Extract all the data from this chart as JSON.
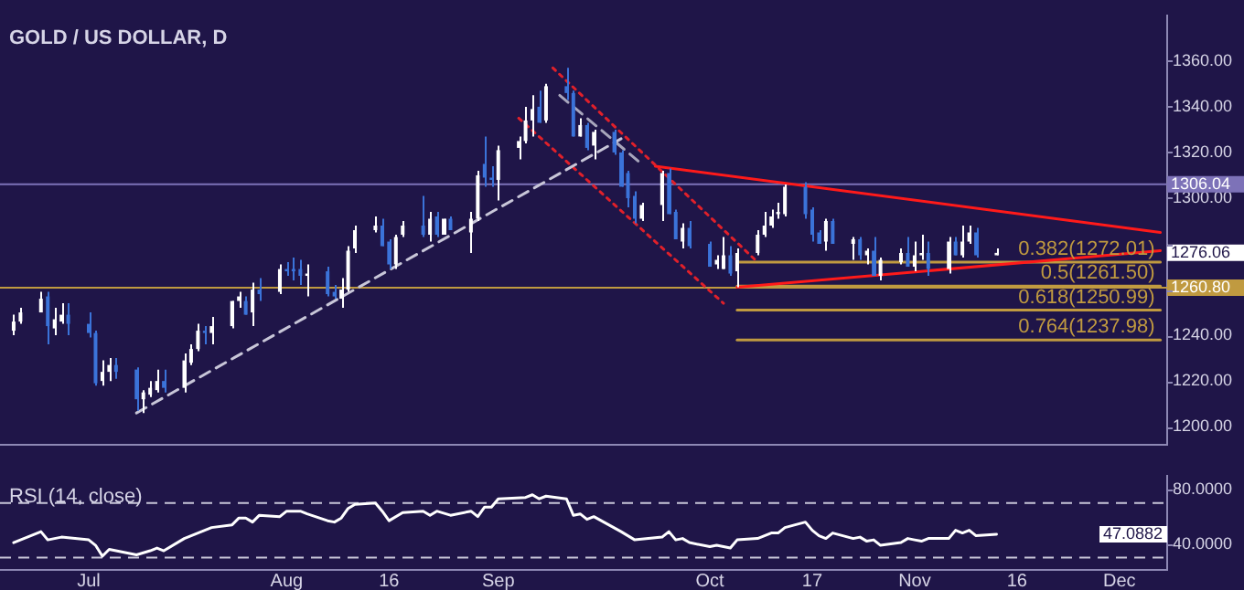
{
  "chart_data": [
    {
      "type": "candlestick",
      "title": "GOLD / US DOLLAR, D",
      "tick_labels": "y",
      "x": [
        "--06-22",
        "--06-23",
        "--06-26",
        "--06-27",
        "--06-28",
        "--06-29",
        "--06-30",
        "--07-03",
        "--07-04",
        "--07-05",
        "--07-06",
        "--07-07",
        "--07-10",
        "--07-11",
        "--07-12",
        "--07-13",
        "--07-14",
        "--07-17",
        "--07-18",
        "--07-19",
        "--07-20",
        "--07-21",
        "--07-24",
        "--07-25",
        "--07-26",
        "--07-27",
        "--07-28",
        "--07-31",
        "--08-01",
        "--08-02",
        "--08-03",
        "--08-04",
        "--08-07",
        "--08-08",
        "--08-09",
        "--08-10",
        "--08-11",
        "--08-14",
        "--08-15",
        "--08-16",
        "--08-17",
        "--08-18",
        "--08-21",
        "--08-22",
        "--08-23",
        "--08-24",
        "--08-25",
        "--08-28",
        "--08-29",
        "--08-30",
        "--08-31",
        "--09-01",
        "--09-04",
        "--09-05",
        "--09-06",
        "--09-07",
        "--09-08",
        "--09-11",
        "--09-12",
        "--09-13",
        "--09-14",
        "--09-15",
        "--09-18",
        "--09-19",
        "--09-20",
        "--09-21",
        "--09-22",
        "--09-25",
        "--09-26",
        "--09-27",
        "--09-28",
        "--09-29",
        "--10-02",
        "--10-03",
        "--10-04",
        "--10-05",
        "--10-06",
        "--10-09",
        "--10-10",
        "--10-11",
        "--10-12",
        "--10-13",
        "--10-16",
        "--10-17",
        "--10-18",
        "--10-19",
        "--10-20",
        "--10-23",
        "--10-24",
        "--10-25",
        "--10-26",
        "--10-27",
        "--10-30",
        "--10-31",
        "--11-01",
        "--11-02",
        "--11-03",
        "--11-06",
        "--11-07",
        "--11-08",
        "--11-09",
        "--11-10",
        "--11-13"
      ],
      "ohlc": [
        [
          1242,
          1249,
          1240,
          1246
        ],
        [
          1246,
          1252,
          1245,
          1250
        ],
        [
          1250,
          1259,
          1250,
          1256
        ],
        [
          1257,
          1259,
          1236,
          1244
        ],
        [
          1243,
          1252,
          1240,
          1247
        ],
        [
          1246,
          1254,
          1245,
          1249
        ],
        [
          1249,
          1254,
          1240,
          1245
        ],
        [
          1245,
          1250,
          1239,
          1241
        ],
        [
          1241,
          1242,
          1218,
          1219
        ],
        [
          1220,
          1229,
          1218,
          1224
        ],
        [
          1224,
          1230,
          1220,
          1227
        ],
        [
          1227,
          1230,
          1221,
          1224
        ],
        [
          1225,
          1226,
          1207,
          1212
        ],
        [
          1212,
          1216,
          1206,
          1215
        ],
        [
          1214,
          1220,
          1213,
          1217
        ],
        [
          1216,
          1225,
          1215,
          1220
        ],
        [
          1220,
          1225,
          1215,
          1217
        ],
        [
          1217,
          1232,
          1215,
          1229
        ],
        [
          1228,
          1236,
          1227,
          1234
        ],
        [
          1234,
          1245,
          1233,
          1242
        ],
        [
          1242,
          1244,
          1236,
          1241
        ],
        [
          1241,
          1248,
          1236,
          1244
        ],
        [
          1244,
          1255,
          1243,
          1255
        ],
        [
          1255,
          1259,
          1252,
          1257
        ],
        [
          1255,
          1257,
          1249,
          1249
        ],
        [
          1250,
          1263,
          1244,
          1260
        ],
        [
          1260,
          1265,
          1255,
          1258
        ],
        [
          1259,
          1271,
          1258,
          1269
        ],
        [
          1269,
          1272,
          1266,
          1268
        ],
        [
          1269,
          1274,
          1264,
          1268
        ],
        [
          1269,
          1273,
          1262,
          1266
        ],
        [
          1266,
          1271,
          1257,
          1267
        ],
        [
          1268,
          1270,
          1257,
          1258
        ],
        [
          1259,
          1262,
          1256,
          1257
        ],
        [
          1256,
          1265,
          1252,
          1260
        ],
        [
          1260,
          1279,
          1259,
          1277
        ],
        [
          1278,
          1288,
          1276,
          1286
        ],
        [
          1286,
          1292,
          1285,
          1288
        ],
        [
          1288,
          1291,
          1279,
          1279
        ],
        [
          1281,
          1282,
          1269,
          1271
        ],
        [
          1271,
          1284,
          1269,
          1283
        ],
        [
          1284,
          1290,
          1283,
          1288
        ],
        [
          1288,
          1301,
          1283,
          1284
        ],
        [
          1284,
          1294,
          1281,
          1291
        ],
        [
          1292,
          1294,
          1283,
          1284
        ],
        [
          1284,
          1291,
          1284,
          1291
        ],
        [
          1291,
          1292,
          1286,
          1286
        ],
        [
          1285,
          1294,
          1276,
          1291
        ],
        [
          1291,
          1312,
          1290,
          1310
        ],
        [
          1315,
          1327,
          1305,
          1309
        ],
        [
          1309,
          1314,
          1305,
          1308
        ],
        [
          1308,
          1323,
          1299,
          1321
        ],
        [
          1322,
          1327,
          1317,
          1325
        ],
        [
          1325,
          1340,
          1324,
          1334
        ],
        [
          1334,
          1345,
          1327,
          1339
        ],
        [
          1340,
          1347,
          1333,
          1333
        ],
        [
          1334,
          1350,
          1333,
          1349
        ],
        [
          1349,
          1357,
          1343,
          1346
        ],
        [
          1346,
          1347,
          1327,
          1327
        ],
        [
          1327,
          1335,
          1327,
          1332
        ],
        [
          1332,
          1333,
          1321,
          1322
        ],
        [
          1323,
          1330,
          1317,
          1329
        ],
        [
          1329,
          1330,
          1319,
          1320
        ],
        [
          1320,
          1321,
          1305,
          1305
        ],
        [
          1311,
          1312,
          1296,
          1300
        ],
        [
          1301,
          1303,
          1289,
          1291
        ],
        [
          1291,
          1298,
          1290,
          1297
        ],
        [
          1297,
          1312,
          1290,
          1311
        ],
        [
          1311,
          1313,
          1293,
          1293
        ],
        [
          1294,
          1295,
          1282,
          1282
        ],
        [
          1281,
          1289,
          1278,
          1287
        ],
        [
          1287,
          1290,
          1278,
          1279
        ],
        [
          1280,
          1281,
          1270,
          1270
        ],
        [
          1271,
          1275,
          1269,
          1273
        ],
        [
          1269,
          1283,
          1269,
          1275
        ],
        [
          1275,
          1279,
          1266,
          1267
        ],
        [
          1268,
          1278,
          1261,
          1276
        ],
        [
          1276,
          1286,
          1275,
          1284
        ],
        [
          1284,
          1294,
          1283,
          1288
        ],
        [
          1288,
          1295,
          1287,
          1292
        ],
        [
          1293,
          1298,
          1291,
          1294
        ],
        [
          1293,
          1306,
          1292,
          1305
        ],
        [
          1305,
          1307,
          1291,
          1293
        ],
        [
          1295,
          1296,
          1281,
          1284
        ],
        [
          1285,
          1286,
          1280,
          1280
        ],
        [
          1281,
          1291,
          1277,
          1290
        ],
        [
          1290,
          1291,
          1280,
          1280
        ],
        [
          1280,
          1283,
          1273,
          1282
        ],
        [
          1282,
          1283,
          1273,
          1275
        ],
        [
          1275,
          1278,
          1271,
          1277
        ],
        [
          1277,
          1283,
          1266,
          1266
        ],
        [
          1266,
          1274,
          1264,
          1273
        ],
        [
          1272,
          1278,
          1271,
          1276
        ],
        [
          1276,
          1283,
          1270,
          1270
        ],
        [
          1270,
          1281,
          1268,
          1275
        ],
        [
          1275,
          1284,
          1273,
          1276
        ],
        [
          1276,
          1281,
          1266,
          1269
        ],
        [
          1269,
          1283,
          1267,
          1281
        ],
        [
          1281,
          1283,
          1275,
          1275
        ],
        [
          1275,
          1288,
          1274,
          1281
        ],
        [
          1281,
          1288,
          1280,
          1285
        ],
        [
          1285,
          1287,
          1274,
          1275
        ],
        [
          1275,
          1278,
          1275,
          1276.06
        ]
      ],
      "colors": [
        "#ffffff",
        "#ffffff",
        "#ffffff",
        "#3b73d9",
        "#ffffff",
        "#ffffff",
        "#3b73d9",
        "#3b73d9",
        "#3b73d9",
        "#ffffff",
        "#ffffff",
        "#3b73d9",
        "#3b73d9",
        "#ffffff",
        "#ffffff",
        "#ffffff",
        "#3b73d9",
        "#ffffff",
        "#ffffff",
        "#ffffff",
        "#3b73d9",
        "#ffffff",
        "#ffffff",
        "#ffffff",
        "#3b73d9",
        "#ffffff",
        "#3b73d9",
        "#ffffff",
        "#3b73d9",
        "#3b73d9",
        "#3b73d9",
        "#ffffff",
        "#3b73d9",
        "#3b73d9",
        "#ffffff",
        "#ffffff",
        "#ffffff",
        "#ffffff",
        "#3b73d9",
        "#3b73d9",
        "#ffffff",
        "#ffffff",
        "#3b73d9",
        "#ffffff",
        "#3b73d9",
        "#ffffff",
        "#3b73d9",
        "#ffffff",
        "#ffffff",
        "#3b73d9",
        "#3b73d9",
        "#ffffff",
        "#ffffff",
        "#ffffff",
        "#ffffff",
        "#3b73d9",
        "#ffffff",
        "#3b73d9",
        "#3b73d9",
        "#ffffff",
        "#3b73d9",
        "#ffffff",
        "#3b73d9",
        "#3b73d9",
        "#3b73d9",
        "#3b73d9",
        "#ffffff",
        "#ffffff",
        "#3b73d9",
        "#3b73d9",
        "#ffffff",
        "#3b73d9",
        "#3b73d9",
        "#ffffff",
        "#ffffff",
        "#3b73d9",
        "#ffffff",
        "#ffffff",
        "#ffffff",
        "#ffffff",
        "#ffffff",
        "#ffffff",
        "#3b73d9",
        "#3b73d9",
        "#3b73d9",
        "#ffffff",
        "#3b73d9",
        "#ffffff",
        "#3b73d9",
        "#ffffff",
        "#3b73d9",
        "#ffffff",
        "#ffffff",
        "#3b73d9",
        "#ffffff",
        "#ffffff",
        "#3b73d9",
        "#ffffff",
        "#3b73d9",
        "#ffffff",
        "#ffffff",
        "#3b73d9",
        "#ffffff"
      ],
      "series": [
        {
          "type": "line",
          "color": "#c8c6d8",
          "line_style": "dashed",
          "x": [
            "--07-10",
            "--09-19"
          ],
          "values": [
            1206,
            1326
          ]
        },
        {
          "type": "line",
          "color": "#a8a6bc",
          "line_style": "dashed",
          "x": [
            "--09-10",
            "--09-22"
          ],
          "values": [
            1345,
            1315
          ]
        },
        {
          "type": "line",
          "color": "#e0202a",
          "line_style": "dotted",
          "x": [
            "--09-09",
            "--10-09"
          ],
          "values": [
            1357,
            1272
          ]
        },
        {
          "type": "line",
          "color": "#e0202a",
          "line_style": "dotted",
          "x": [
            "--09-04",
            "--10-04"
          ],
          "values": [
            1335,
            1254
          ]
        },
        {
          "type": "line",
          "color": "#ff1a1a",
          "x": [
            "--09-24",
            "--12-07"
          ],
          "values": [
            1314,
            1285
          ]
        },
        {
          "type": "line",
          "color": "#ff1a1a",
          "x": [
            "--10-06",
            "--12-07"
          ],
          "values": [
            1261,
            1277
          ]
        },
        {
          "type": "line",
          "name": "0.382(1272.01)",
          "color": "#c09a40",
          "x": [
            "--10-06",
            "--12-07"
          ],
          "values": [
            1272.01,
            1272.01
          ]
        },
        {
          "type": "line",
          "name": "0.5(1261.50)",
          "color": "#c09a40",
          "x": [
            "--10-06",
            "--12-07"
          ],
          "values": [
            1261.5,
            1261.5
          ]
        },
        {
          "type": "line",
          "name": "0.618(1250.99)",
          "color": "#c09a40",
          "x": [
            "--10-06",
            "--12-07"
          ],
          "values": [
            1250.99,
            1250.99
          ]
        },
        {
          "type": "line",
          "name": "0.764(1237.98)",
          "color": "#c09a40",
          "x": [
            "--10-06",
            "--12-07"
          ],
          "values": [
            1237.98,
            1237.98
          ]
        }
      ],
      "ref_lines": [
        {
          "axis": "y",
          "value": 1306.04,
          "label": "1306.04",
          "color": "#7d72b8"
        },
        {
          "axis": "y",
          "value": 1260.8,
          "label": "1260.80",
          "color": "#c09a40"
        }
      ],
      "annotations": [
        {
          "text": "1276.06",
          "x": "--12-08",
          "y": 1276.06
        }
      ],
      "xlim": [
        "--06-20",
        "--12-08"
      ],
      "ylim": [
        1192,
        1380
      ],
      "yticks": [
        {
          "value": 1200,
          "label": "1200.00"
        },
        {
          "value": 1220,
          "label": "1220.00"
        },
        {
          "value": 1240,
          "label": "1240.00"
        },
        {
          "value": 1260,
          "label": null
        },
        {
          "value": 1280,
          "label": null
        },
        {
          "value": 1300,
          "label": "1300.00"
        },
        {
          "value": 1320,
          "label": "1320.00"
        },
        {
          "value": 1340,
          "label": "1340.00"
        },
        {
          "value": 1360,
          "label": "1360.00"
        }
      ]
    },
    {
      "type": "line",
      "title": "RSI (14, close)",
      "series": [
        {
          "color": "#ffffff",
          "x": [
            "--06-22",
            "--06-26",
            "--06-27",
            "--06-29",
            "--07-03",
            "--07-04",
            "--07-05",
            "--07-06",
            "--07-10",
            "--07-12",
            "--07-13",
            "--07-14",
            "--07-17",
            "--07-19",
            "--07-21",
            "--07-24",
            "--07-25",
            "--07-26",
            "--07-27",
            "--07-28",
            "--07-31",
            "--08-01",
            "--08-03",
            "--08-04",
            "--08-07",
            "--08-08",
            "--08-09",
            "--08-10",
            "--08-11",
            "--08-14",
            "--08-15",
            "--08-16",
            "--08-18",
            "--08-21",
            "--08-22",
            "--08-23",
            "--08-25",
            "--08-28",
            "--08-29",
            "--08-30",
            "--08-31",
            "--09-01",
            "--09-05",
            "--09-06",
            "--09-07",
            "--09-08",
            "--09-11",
            "--09-12",
            "--09-13",
            "--09-14",
            "--09-15",
            "--09-19",
            "--09-20",
            "--09-21",
            "--09-25",
            "--09-26",
            "--09-27",
            "--09-28",
            "--09-29",
            "--10-02",
            "--10-03",
            "--10-04",
            "--10-05",
            "--10-06",
            "--10-09",
            "--10-10",
            "--10-11",
            "--10-12",
            "--10-13",
            "--10-16",
            "--10-17",
            "--10-18",
            "--10-19",
            "--10-20",
            "--10-23",
            "--10-24",
            "--10-25",
            "--10-26",
            "--10-27",
            "--10-30",
            "--10-31",
            "--11-01",
            "--11-02",
            "--11-03",
            "--11-06",
            "--11-07",
            "--11-08",
            "--11-09",
            "--11-10",
            "--11-13"
          ],
          "values": [
            41,
            49,
            43,
            45,
            43,
            39,
            31,
            36,
            32,
            35,
            37,
            35,
            44,
            48,
            52,
            54,
            59,
            59,
            56,
            61,
            60,
            64,
            64,
            62,
            57,
            56,
            59,
            66,
            69,
            70,
            64,
            57,
            63,
            64,
            61,
            64,
            61,
            64,
            60,
            67,
            67,
            73,
            74,
            76,
            73,
            75,
            73,
            61,
            62,
            58,
            60,
            49,
            46,
            43,
            45,
            49,
            43,
            44,
            41,
            38,
            39,
            38,
            37,
            43,
            44,
            46,
            48,
            48,
            52,
            56,
            50,
            46,
            44,
            48,
            44,
            45,
            42,
            43,
            39,
            41,
            44,
            43,
            42,
            44,
            44,
            50,
            48,
            50,
            46,
            47.0882
          ]
        }
      ],
      "ref_lines": [
        {
          "axis": "y",
          "value": 70,
          "color": "#c8c6d8",
          "line_style": "dashed"
        },
        {
          "axis": "y",
          "value": 30,
          "color": "#c8c6d8",
          "line_style": "dashed"
        }
      ],
      "annotations": [
        "47.0882"
      ],
      "xlim": [
        "--06-20",
        "--12-08"
      ],
      "ylim": [
        21,
        90
      ],
      "xticks": [
        {
          "value": "--07-03",
          "label": "Jul"
        },
        {
          "value": "--08-01",
          "label": "Aug"
        },
        {
          "value": "--08-16",
          "label": "16"
        },
        {
          "value": "--09-01",
          "label": "Sep"
        },
        {
          "value": "--10-02",
          "label": "Oct"
        },
        {
          "value": "--10-17",
          "label": "17"
        },
        {
          "value": "--11-01",
          "label": "Nov"
        },
        {
          "value": "--11-16",
          "label": "16"
        },
        {
          "value": "--12-01",
          "label": "Dec"
        }
      ],
      "yticks": [
        {
          "value": 40,
          "label": "40.0000"
        },
        {
          "value": 80,
          "label": "80.0000"
        }
      ]
    }
  ]
}
